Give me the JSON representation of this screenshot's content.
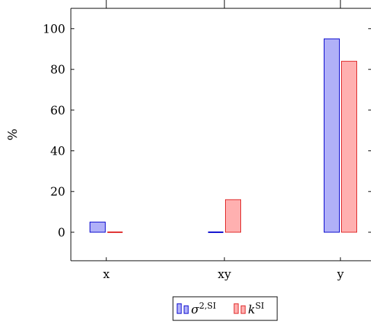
{
  "chart_data": {
    "type": "bar",
    "title": "",
    "xlabel": "",
    "ylabel": "%",
    "categories": [
      "x",
      "xy",
      "y"
    ],
    "series": [
      {
        "name": "σ2,SI",
        "name_base": "σ",
        "name_sup": "2,SI",
        "values": [
          5,
          0,
          95
        ],
        "fill": "#b0b0f8",
        "stroke": "#0000cc"
      },
      {
        "name": "kSI",
        "name_base": "k",
        "name_sup": "SI",
        "values": [
          0,
          16,
          84
        ],
        "fill": "#ffb0b0",
        "stroke": "#dd2222"
      }
    ],
    "ylim": [
      -14,
      110
    ],
    "yticks": [
      0,
      20,
      40,
      60,
      80,
      100
    ],
    "grid": false,
    "legend_position": "bottom-center"
  }
}
